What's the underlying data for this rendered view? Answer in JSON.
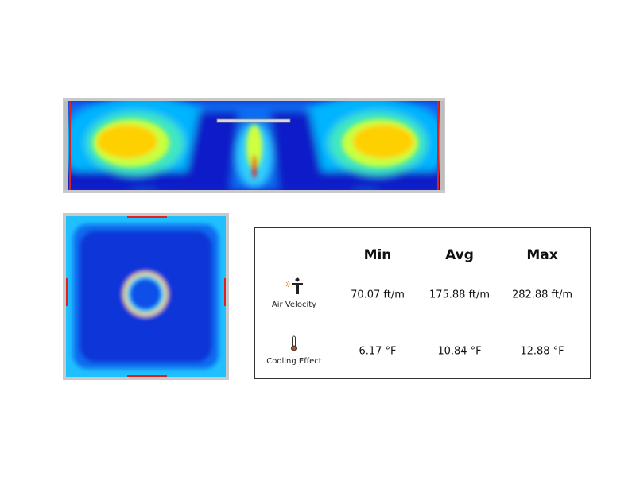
{
  "table": {
    "columns": [
      "Min",
      "Avg",
      "Max"
    ],
    "rows": [
      {
        "label": "Air Velocity",
        "cells": [
          "70.07 ft/m",
          "175.88 ft/m",
          "282.88 ft/m"
        ]
      },
      {
        "label": "Cooling Effect",
        "cells": [
          "6.17 °F",
          "10.84 °F",
          "12.88 °F"
        ]
      }
    ]
  }
}
